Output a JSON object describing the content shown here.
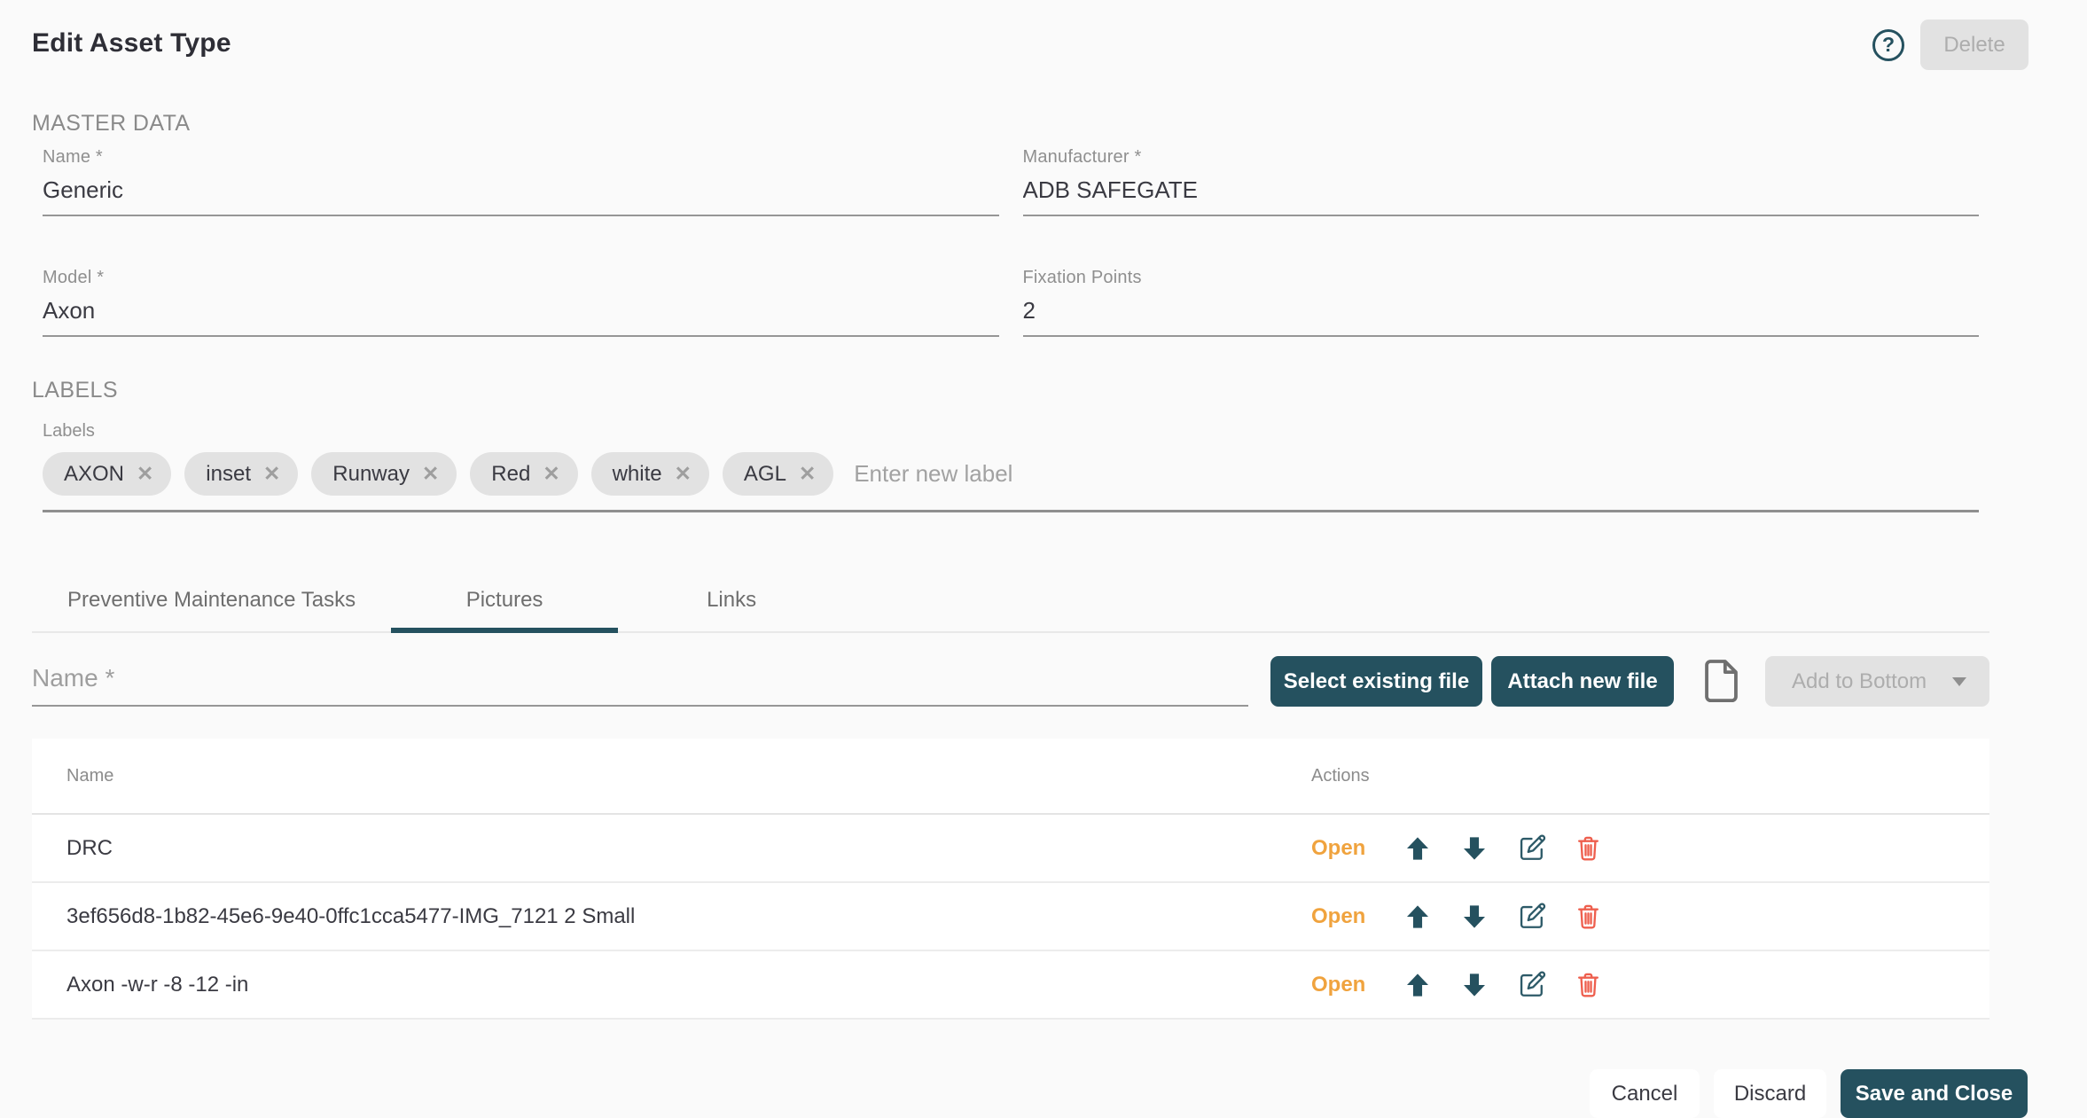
{
  "title": "Edit Asset Type",
  "header": {
    "help_glyph": "?",
    "delete_label": "Delete"
  },
  "master_data": {
    "section_title": "MASTER DATA",
    "fields": [
      {
        "label": "Name *",
        "value": "Generic"
      },
      {
        "label": "Manufacturer *",
        "value": "ADB SAFEGATE"
      },
      {
        "label": "Model *",
        "value": "Axon"
      },
      {
        "label": "Fixation Points",
        "value": "2"
      }
    ]
  },
  "labels_section": {
    "section_title": "LABELS",
    "field_label": "Labels",
    "chips": [
      "AXON",
      "inset",
      "Runway",
      "Red",
      "white",
      "AGL"
    ],
    "remove_glyph": "✕",
    "input_placeholder": "Enter new label"
  },
  "tabs": [
    {
      "label": "Preventive Maintenance Tasks",
      "active": false
    },
    {
      "label": "Pictures",
      "active": true
    },
    {
      "label": "Links",
      "active": false
    }
  ],
  "pictures_panel": {
    "name_placeholder": "Name *",
    "select_existing_label": "Select existing file",
    "attach_new_label": "Attach new file",
    "add_to_bottom_label": "Add to Bottom",
    "table": {
      "columns": [
        "Name",
        "Actions"
      ],
      "row_actions": {
        "open_label": "Open",
        "icons": [
          "move-up",
          "move-down",
          "edit",
          "delete"
        ]
      },
      "rows": [
        {
          "name": "DRC"
        },
        {
          "name": "3ef656d8-1b82-45e6-9e40-0ffc1cca5477-IMG_7121 2 Small"
        },
        {
          "name": "Axon -w-r -8 -12 -in"
        }
      ]
    }
  },
  "footer": {
    "cancel_label": "Cancel",
    "discard_label": "Discard",
    "save_label": "Save and Close"
  },
  "colors": {
    "primary_teal": "#25515f",
    "open_orange": "#f0a33e",
    "delete_red": "#ee5f4e",
    "page_background": "#fafafa",
    "chip_background": "#e2e2e2",
    "disabled_background": "#e2e2e2"
  }
}
